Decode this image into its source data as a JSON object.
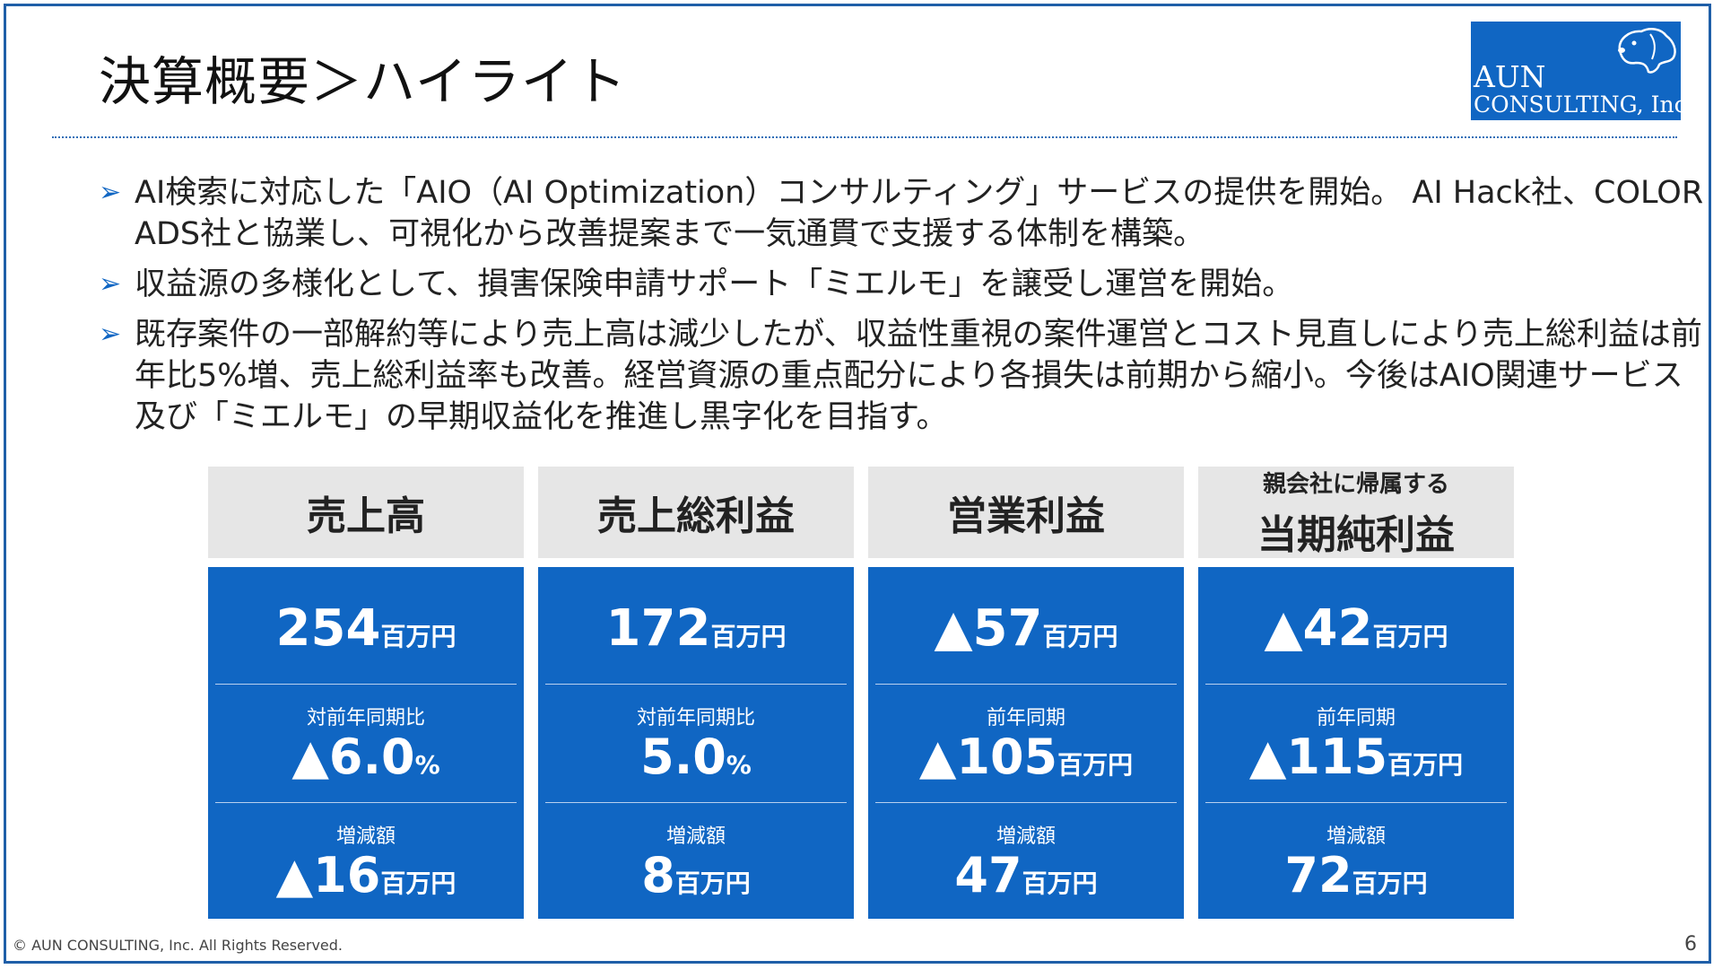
{
  "title": "決算概要＞ハイライト",
  "logo": {
    "line1": "AUN",
    "line2": "CONSULTING, Inc."
  },
  "bullets": [
    "AI検索に対応した「AIO（AI Optimization）コンサルティング」サービスの提供を開始。 AI Hack社、COLOR ADS社と協業し、可視化から改善提案まで一気通貫で支援する体制を構築。",
    "収益源の多様化として、損害保険申請サポート「ミエルモ」を譲受し運営を開始。",
    "既存案件の一部解約等により売上高は減少したが、収益性重視の案件運営とコスト見直しにより売上総利益は前年比5%増、売上総利益率も改善。経営資源の重点配分により各損失は前期から縮小。今後はAIO関連サービス及び「ミエルモ」の早期収益化を推進し黒字化を目指す。"
  ],
  "bullet_marker": "➢",
  "unit": "百万円",
  "cards": [
    {
      "subhead": "",
      "head": "売上高",
      "main": "254",
      "label1": "対前年同期比",
      "val1": "▲6.0",
      "val1_unit": "%",
      "label2": "増減額",
      "val2": "▲16"
    },
    {
      "subhead": "",
      "head": "売上総利益",
      "main": "172",
      "label1": "対前年同期比",
      "val1": "5.0",
      "val1_unit": "%",
      "label2": "増減額",
      "val2": "8"
    },
    {
      "subhead": "",
      "head": "営業利益",
      "main": "▲57",
      "label1": "前年同期",
      "val1": "▲105",
      "val1_unit": "百万円",
      "label2": "増減額",
      "val2": "47"
    },
    {
      "subhead": "親会社に帰属する",
      "head": "当期純利益",
      "main": "▲42",
      "label1": "前年同期",
      "val1": "▲115",
      "val1_unit": "百万円",
      "label2": "増減額",
      "val2": "72"
    }
  ],
  "footer": "© AUN CONSULTING, Inc. All Rights Reserved.",
  "page_number": "6",
  "colors": {
    "accent": "#1066c3",
    "header_bg": "#e6e6e6",
    "frame": "#1f5fa8"
  }
}
